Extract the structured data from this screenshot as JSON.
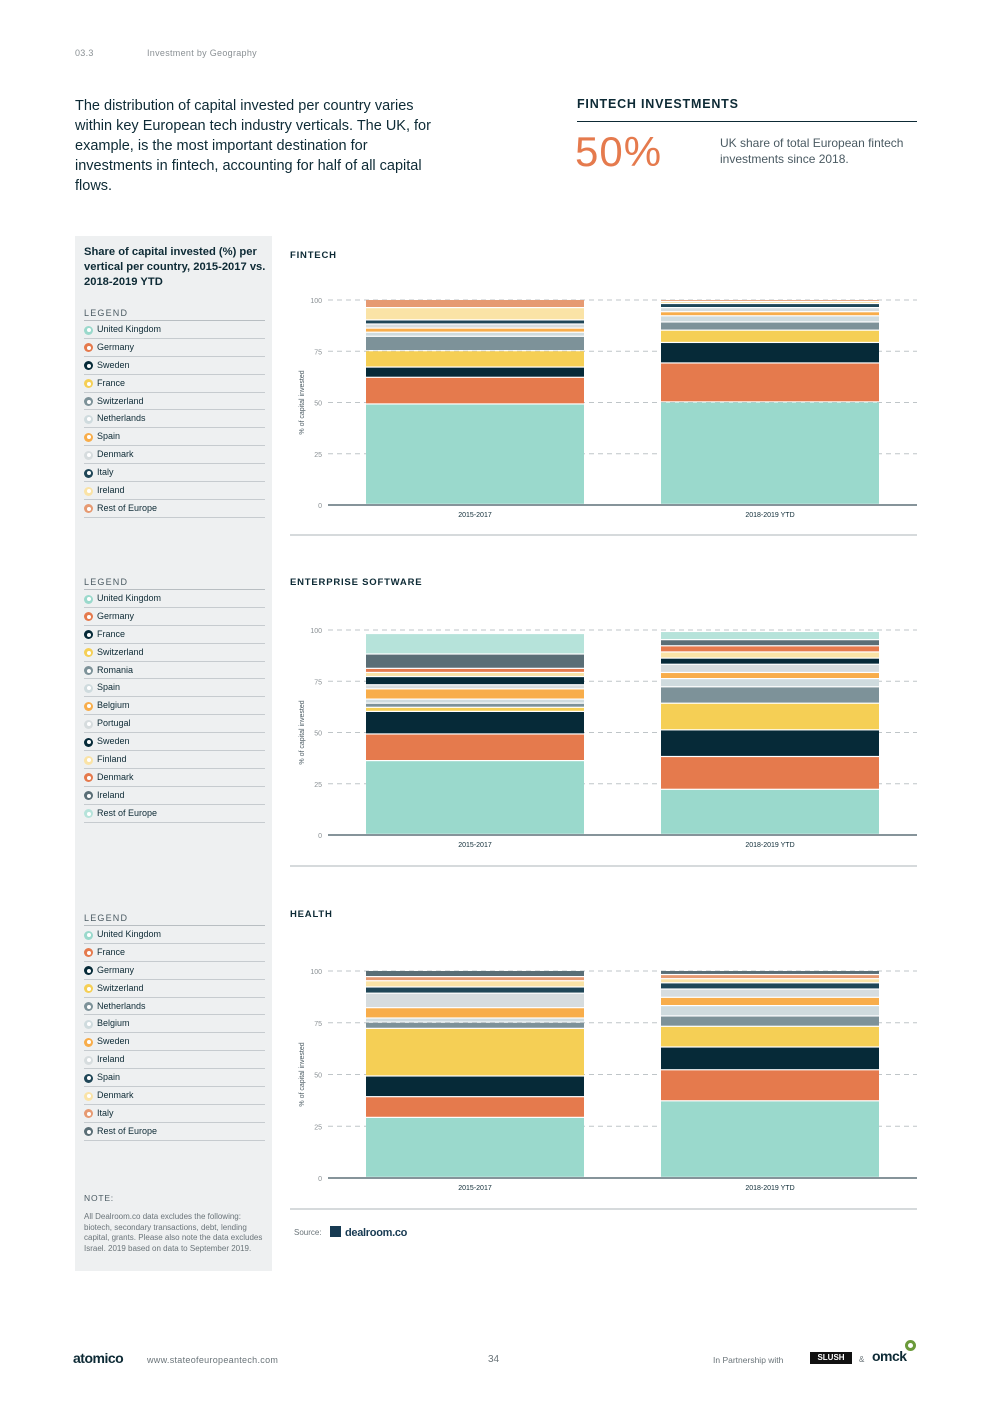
{
  "header": {
    "section": "03.3",
    "title": "Investment by Geography"
  },
  "intro": "The distribution of capital invested per country varies within key European tech industry verticals. The UK, for example, is the most important destination for investments in fintech, accounting for half of all capital flows.",
  "callout": {
    "title": "FINTECH INVESTMENTS",
    "value": "50%",
    "desc": "UK share of total European fintech investments since 2018."
  },
  "sidebar": {
    "title": "Share of capital invested (%) per vertical per country, 2015-2017 vs. 2018-2019 YTD",
    "note_heading": "NOTE:",
    "note_text": "All Dealroom.co data excludes the following: biotech, secondary transactions, debt, lending capital, grants. Please also note the data excludes Israel. 2019 based on data to September 2019."
  },
  "legend_heading": "LEGEND",
  "colors": {
    "c1": "#9ad9cc",
    "c2": "#e57a4d",
    "c3": "#062a38",
    "c4": "#f5cf55",
    "c5": "#7d9299",
    "c6": "#cfdbde",
    "c7": "#f8ad4a",
    "c8": "#d6dcde",
    "c9": "#1f4657",
    "c10": "#fae3a6",
    "c11": "#e69a72",
    "c12": "#5a6e76",
    "c13": "#b6e3da"
  },
  "chart_data": [
    {
      "type": "bar",
      "stacked": true,
      "title": "FINTECH",
      "ylabel": "% of capital invested",
      "ylim": [
        0,
        100
      ],
      "yticks": [
        0,
        25,
        50,
        75,
        100
      ],
      "grid": true,
      "categories": [
        "2015-2017",
        "2018-2019 YTD"
      ],
      "series": [
        {
          "name": "United Kingdom",
          "color": "c1",
          "values": [
            49,
            50
          ]
        },
        {
          "name": "Germany",
          "color": "c2",
          "values": [
            13,
            19
          ]
        },
        {
          "name": "Sweden",
          "color": "c3",
          "values": [
            5,
            10
          ]
        },
        {
          "name": "France",
          "color": "c4",
          "values": [
            8,
            6
          ]
        },
        {
          "name": "Switzerland",
          "color": "c5",
          "values": [
            7,
            4
          ]
        },
        {
          "name": "Netherlands",
          "color": "c6",
          "values": [
            2,
            3
          ]
        },
        {
          "name": "Spain",
          "color": "c7",
          "values": [
            2,
            2
          ]
        },
        {
          "name": "Denmark",
          "color": "c8",
          "values": [
            2,
            2
          ]
        },
        {
          "name": "Italy",
          "color": "c9",
          "values": [
            2,
            2
          ]
        },
        {
          "name": "Ireland",
          "color": "c10",
          "values": [
            6,
            1
          ]
        },
        {
          "name": "Rest of Europe",
          "color": "c11",
          "values": [
            4,
            1
          ]
        }
      ]
    },
    {
      "type": "bar",
      "stacked": true,
      "title": "ENTERPRISE SOFTWARE",
      "ylabel": "% of capital invested",
      "ylim": [
        0,
        100
      ],
      "yticks": [
        0,
        25,
        50,
        75,
        100
      ],
      "grid": true,
      "categories": [
        "2015-2017",
        "2018-2019 YTD"
      ],
      "series": [
        {
          "name": "United Kingdom",
          "color": "c1",
          "values": [
            36,
            22
          ]
        },
        {
          "name": "Germany",
          "color": "c2",
          "values": [
            13,
            16
          ]
        },
        {
          "name": "France",
          "color": "c3",
          "values": [
            11,
            13
          ]
        },
        {
          "name": "Switzerland",
          "color": "c4",
          "values": [
            2,
            13
          ]
        },
        {
          "name": "Romania",
          "color": "c5",
          "values": [
            2,
            8
          ]
        },
        {
          "name": "Spain",
          "color": "c6",
          "values": [
            2,
            4
          ]
        },
        {
          "name": "Belgium",
          "color": "c7",
          "values": [
            5,
            3
          ]
        },
        {
          "name": "Portugal",
          "color": "c8",
          "values": [
            2,
            4
          ]
        },
        {
          "name": "Sweden",
          "color": "c3",
          "values": [
            4,
            3
          ]
        },
        {
          "name": "Finland",
          "color": "c10",
          "values": [
            2,
            3
          ]
        },
        {
          "name": "Denmark",
          "color": "c2",
          "values": [
            2,
            3
          ]
        },
        {
          "name": "Ireland",
          "color": "c12",
          "values": [
            7,
            3
          ]
        },
        {
          "name": "Rest of Europe",
          "color": "c13",
          "values": [
            10,
            4
          ]
        }
      ]
    },
    {
      "type": "bar",
      "stacked": true,
      "title": "HEALTH",
      "ylabel": "% of capital invested",
      "ylim": [
        0,
        100
      ],
      "yticks": [
        0,
        25,
        50,
        75,
        100
      ],
      "grid": true,
      "categories": [
        "2015-2017",
        "2018-2019 YTD"
      ],
      "series": [
        {
          "name": "United Kingdom",
          "color": "c1",
          "values": [
            29,
            37
          ]
        },
        {
          "name": "France",
          "color": "c2",
          "values": [
            10,
            15
          ]
        },
        {
          "name": "Germany",
          "color": "c3",
          "values": [
            10,
            11
          ]
        },
        {
          "name": "Switzerland",
          "color": "c4",
          "values": [
            23,
            10
          ]
        },
        {
          "name": "Netherlands",
          "color": "c5",
          "values": [
            3,
            5
          ]
        },
        {
          "name": "Belgium",
          "color": "c6",
          "values": [
            2,
            5
          ]
        },
        {
          "name": "Sweden",
          "color": "c7",
          "values": [
            5,
            4
          ]
        },
        {
          "name": "Ireland",
          "color": "c8",
          "values": [
            7,
            4
          ]
        },
        {
          "name": "Spain",
          "color": "c9",
          "values": [
            3,
            3
          ]
        },
        {
          "name": "Denmark",
          "color": "c10",
          "values": [
            3,
            2
          ]
        },
        {
          "name": "Italy",
          "color": "c11",
          "values": [
            2,
            2
          ]
        },
        {
          "name": "Rest of Europe",
          "color": "c12",
          "values": [
            3,
            2
          ]
        }
      ]
    }
  ],
  "source": {
    "label": "Source:",
    "name": "dealroom.co"
  },
  "footer": {
    "logo": "atomico",
    "url": "www.stateofeuropeantech.com",
    "page": "34",
    "partner_label": "In Partnership with",
    "partner1": "SLUSH",
    "amp": "&",
    "partner2": "omck"
  }
}
